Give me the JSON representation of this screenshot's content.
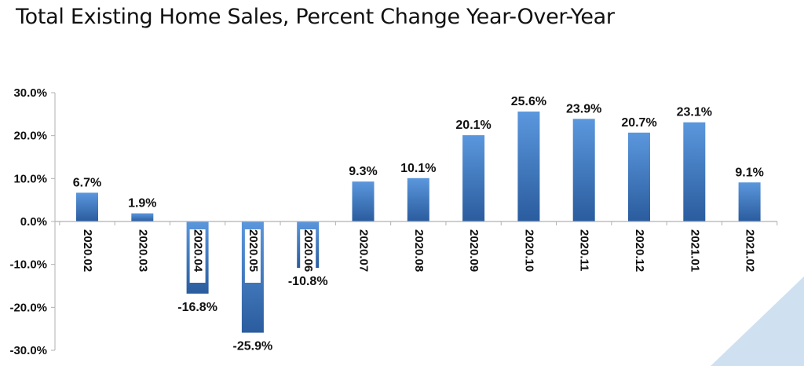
{
  "title": "Total Existing Home Sales, Percent Change Year-Over-Year",
  "chart_data": {
    "type": "bar",
    "title": "Total Existing Home Sales, Percent Change Year-Over-Year",
    "categories": [
      "2020.02",
      "2020.03",
      "2020.04",
      "2020.05",
      "2020.06",
      "2020.07",
      "2020.08",
      "2020.09",
      "2020.10",
      "2020.11",
      "2020.12",
      "2021.01",
      "2021.02"
    ],
    "values": [
      6.7,
      1.9,
      -16.8,
      -25.9,
      -10.8,
      9.3,
      10.1,
      20.1,
      25.6,
      23.9,
      20.7,
      23.1,
      9.1
    ],
    "data_labels": [
      "6.7%",
      "1.9%",
      "-16.8%",
      "-25.9%",
      "-10.8%",
      "9.3%",
      "10.1%",
      "20.1%",
      "25.6%",
      "23.9%",
      "20.7%",
      "23.1%",
      "9.1%"
    ],
    "xlabel": "",
    "ylabel": "",
    "ylim": [
      -30,
      30
    ],
    "yticks": [
      "30.0%",
      "20.0%",
      "10.0%",
      "0.0%",
      "-10.0%",
      "-20.0%",
      "-30.0%"
    ],
    "ytick_values": [
      30,
      20,
      10,
      0,
      -10,
      -20,
      -30
    ],
    "grid": false,
    "legend": "none",
    "colors": {
      "bar": "#3e7bc4",
      "bar_dark": "#24548f",
      "axis": "#b0b0b0",
      "corner_accent": "#c9dcee"
    }
  }
}
